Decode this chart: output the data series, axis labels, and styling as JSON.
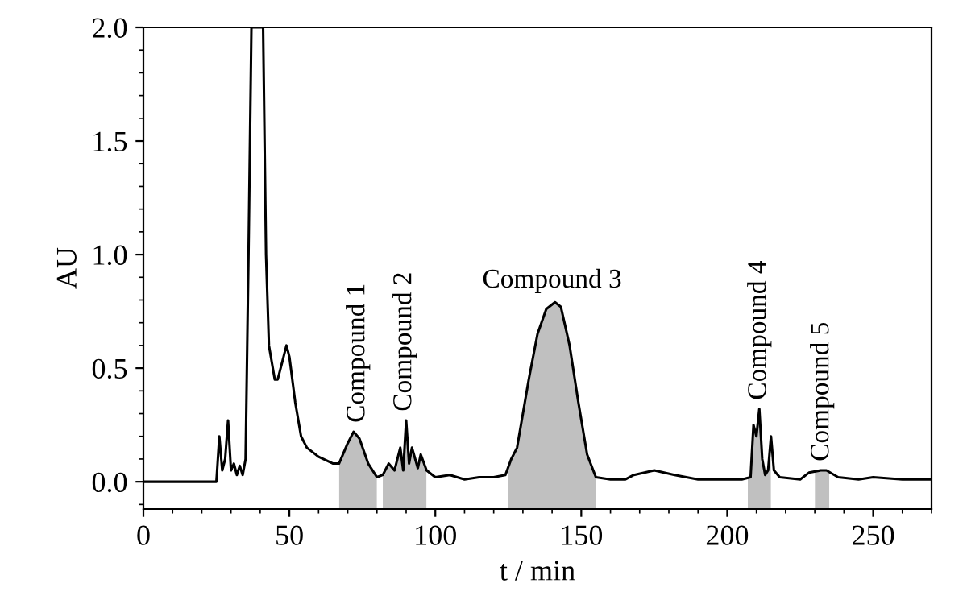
{
  "chart_data": {
    "type": "line",
    "xlabel": "t / min",
    "ylabel": "AU",
    "x": [
      0,
      25,
      26,
      27,
      28,
      29,
      30,
      31,
      32,
      33,
      34,
      35,
      36,
      37,
      41,
      42,
      43,
      45,
      46,
      48,
      49,
      50,
      52,
      54,
      56,
      60,
      65,
      67,
      70,
      72,
      74,
      77,
      80,
      82,
      84,
      86,
      88,
      89,
      90,
      91,
      92,
      94,
      95,
      97,
      100,
      105,
      110,
      115,
      120,
      124,
      126,
      128,
      130,
      132,
      135,
      138,
      141,
      143,
      146,
      149,
      152,
      155,
      160,
      165,
      168,
      175,
      182,
      190,
      205,
      208,
      209,
      210,
      211,
      212,
      213,
      214,
      215,
      216,
      218,
      225,
      228,
      232,
      234,
      238,
      245,
      250,
      260,
      270
    ],
    "series": [
      {
        "color": "#000000",
        "values": [
          0.0,
          0.0,
          0.2,
          0.05,
          0.1,
          0.27,
          0.05,
          0.08,
          0.03,
          0.07,
          0.03,
          0.1,
          1.0,
          2.0,
          2.0,
          1.0,
          0.6,
          0.45,
          0.45,
          0.55,
          0.6,
          0.55,
          0.35,
          0.2,
          0.15,
          0.11,
          0.08,
          0.08,
          0.17,
          0.22,
          0.19,
          0.08,
          0.02,
          0.03,
          0.08,
          0.05,
          0.15,
          0.05,
          0.27,
          0.08,
          0.15,
          0.06,
          0.12,
          0.05,
          0.02,
          0.03,
          0.01,
          0.02,
          0.02,
          0.03,
          0.1,
          0.15,
          0.3,
          0.45,
          0.65,
          0.76,
          0.79,
          0.77,
          0.6,
          0.35,
          0.12,
          0.02,
          0.01,
          0.01,
          0.03,
          0.05,
          0.03,
          0.01,
          0.01,
          0.02,
          0.25,
          0.2,
          0.32,
          0.1,
          0.03,
          0.05,
          0.2,
          0.05,
          0.02,
          0.01,
          0.04,
          0.05,
          0.05,
          0.02,
          0.01,
          0.02,
          0.01,
          0.01
        ]
      }
    ],
    "xlim": [
      0,
      270
    ],
    "xticks": [
      0,
      50,
      100,
      150,
      200,
      250
    ],
    "ylim": [
      -0.12,
      2.0
    ],
    "yticks": [
      {
        "value": 0,
        "label": "0.0"
      },
      {
        "value": 0.5,
        "label": "0.5"
      },
      {
        "value": 1.0,
        "label": "1.0"
      },
      {
        "value": 1.5,
        "label": "1.5"
      },
      {
        "value": 2.0,
        "label": "2.0"
      }
    ],
    "bands": [
      {
        "axis": "x",
        "from": 67,
        "to": 80,
        "color": "#c0c0c0",
        "label": "Compound 1"
      },
      {
        "axis": "x",
        "from": 82,
        "to": 97,
        "color": "#c0c0c0",
        "label": "Compound 2"
      },
      {
        "axis": "x",
        "from": 125,
        "to": 155,
        "color": "#c0c0c0",
        "label": "Compound 3"
      },
      {
        "axis": "x",
        "from": 207,
        "to": 215,
        "color": "#c0c0c0",
        "label": "Compound 4"
      },
      {
        "axis": "x",
        "from": 230,
        "to": 235,
        "color": "#c0c0c0",
        "label": "Compound 5"
      }
    ],
    "grid": false,
    "legend": false,
    "marker": "none",
    "line_style": "solid"
  }
}
